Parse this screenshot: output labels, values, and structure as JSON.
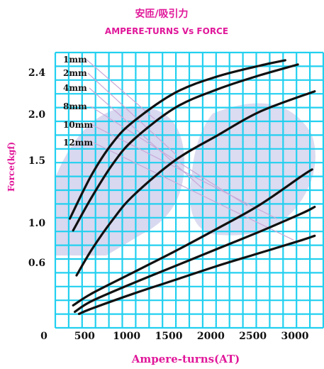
{
  "chart_data": {
    "type": "line",
    "title": "安匝/吸引力",
    "subtitle": "AMPERE-TURNS Vs FORCE",
    "xlabel": "Ampere-turns(AT)",
    "ylabel": "Force(kgf)",
    "xlim": [
      0,
      3200
    ],
    "ylim": [
      0,
      2.6
    ],
    "x_ticks": [
      "0",
      "500",
      "1000",
      "1500",
      "2000",
      "2500",
      "3000"
    ],
    "y_ticks": [
      "0.6",
      "1.0",
      "1.5",
      "2.0",
      "2.4"
    ],
    "grid": true,
    "legend_position": "top-left",
    "colors": {
      "background": "#ffffff",
      "grid": "#22d0f0",
      "line": "#111111",
      "leader": "#c8a8d8",
      "title": "#e0189a",
      "watermark": "#b8b8e4"
    },
    "series": [
      {
        "name": "1mm",
        "x": [
          240,
          500,
          750,
          1000,
          1500,
          2000,
          2500,
          2800
        ],
        "y": [
          1.02,
          1.43,
          1.73,
          1.93,
          2.2,
          2.35,
          2.45,
          2.5
        ]
      },
      {
        "name": "2mm",
        "x": [
          280,
          500,
          750,
          1000,
          1500,
          2000,
          2500,
          2950
        ],
        "y": [
          0.91,
          1.22,
          1.53,
          1.76,
          2.06,
          2.23,
          2.36,
          2.46
        ]
      },
      {
        "name": "4mm",
        "x": [
          320,
          500,
          750,
          1000,
          1500,
          2000,
          2500,
          3150
        ],
        "y": [
          0.49,
          0.73,
          1.01,
          1.24,
          1.57,
          1.8,
          2.02,
          2.21
        ]
      },
      {
        "name": "8mm",
        "x": [
          280,
          500,
          1000,
          1500,
          2000,
          2500,
          3000,
          3120
        ],
        "y": [
          0.21,
          0.32,
          0.52,
          0.72,
          0.93,
          1.15,
          1.42,
          1.48
        ]
      },
      {
        "name": "10mm",
        "x": [
          300,
          500,
          1000,
          1500,
          2000,
          2500,
          3000,
          3150
        ],
        "y": [
          0.15,
          0.25,
          0.42,
          0.58,
          0.74,
          0.9,
          1.07,
          1.13
        ]
      },
      {
        "name": "12mm",
        "x": [
          350,
          500,
          1000,
          1500,
          2000,
          2500,
          3000,
          3150
        ],
        "y": [
          0.13,
          0.18,
          0.32,
          0.45,
          0.58,
          0.7,
          0.82,
          0.86
        ]
      }
    ]
  }
}
